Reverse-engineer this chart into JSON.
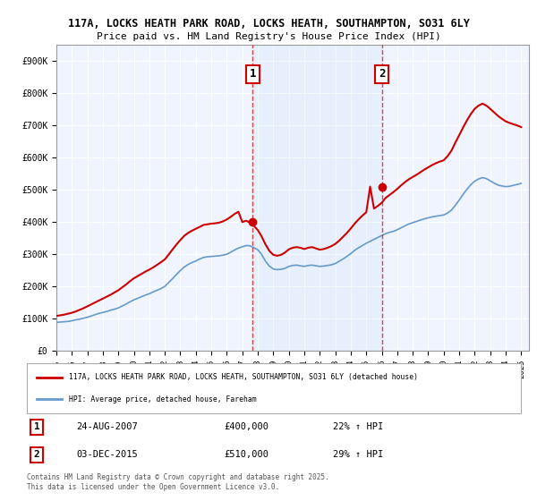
{
  "title1": "117A, LOCKS HEATH PARK ROAD, LOCKS HEATH, SOUTHAMPTON, SO31 6LY",
  "title2": "Price paid vs. HM Land Registry's House Price Index (HPI)",
  "ylabel": "",
  "background_color": "#ffffff",
  "plot_bg_color": "#f0f4ff",
  "grid_color": "#ffffff",
  "red_color": "#cc0000",
  "blue_color": "#6699cc",
  "sale1_date": "2007-08-24",
  "sale1_label": "1",
  "sale1_price": 400000,
  "sale1_pct": "22%",
  "sale2_date": "2015-12-03",
  "sale2_label": "2",
  "sale2_price": 510000,
  "sale2_pct": "29%",
  "legend_line1": "117A, LOCKS HEATH PARK ROAD, LOCKS HEATH, SOUTHAMPTON, SO31 6LY (detached house)",
  "legend_line2": "HPI: Average price, detached house, Fareham",
  "footer": "Contains HM Land Registry data © Crown copyright and database right 2025.\nThis data is licensed under the Open Government Licence v3.0.",
  "ylim": [
    0,
    950000
  ],
  "xlim_start": 1995.0,
  "xlim_end": 2025.5,
  "yticks": [
    0,
    100000,
    200000,
    300000,
    400000,
    500000,
    600000,
    700000,
    800000,
    900000
  ],
  "ytick_labels": [
    "£0",
    "£100K",
    "£200K",
    "£300K",
    "£400K",
    "£500K",
    "£600K",
    "£700K",
    "£800K",
    "£900K"
  ],
  "xticks": [
    1995,
    1996,
    1997,
    1998,
    1999,
    2000,
    2001,
    2002,
    2003,
    2004,
    2005,
    2006,
    2007,
    2008,
    2009,
    2010,
    2011,
    2012,
    2013,
    2014,
    2015,
    2016,
    2017,
    2018,
    2019,
    2020,
    2021,
    2022,
    2023,
    2024,
    2025
  ],
  "hpi_years": [
    1995.0,
    1995.25,
    1995.5,
    1995.75,
    1996.0,
    1996.25,
    1996.5,
    1996.75,
    1997.0,
    1997.25,
    1997.5,
    1997.75,
    1998.0,
    1998.25,
    1998.5,
    1998.75,
    1999.0,
    1999.25,
    1999.5,
    1999.75,
    2000.0,
    2000.25,
    2000.5,
    2000.75,
    2001.0,
    2001.25,
    2001.5,
    2001.75,
    2002.0,
    2002.25,
    2002.5,
    2002.75,
    2003.0,
    2003.25,
    2003.5,
    2003.75,
    2004.0,
    2004.25,
    2004.5,
    2004.75,
    2005.0,
    2005.25,
    2005.5,
    2005.75,
    2006.0,
    2006.25,
    2006.5,
    2006.75,
    2007.0,
    2007.25,
    2007.5,
    2007.75,
    2008.0,
    2008.25,
    2008.5,
    2008.75,
    2009.0,
    2009.25,
    2009.5,
    2009.75,
    2010.0,
    2010.25,
    2010.5,
    2010.75,
    2011.0,
    2011.25,
    2011.5,
    2011.75,
    2012.0,
    2012.25,
    2012.5,
    2012.75,
    2013.0,
    2013.25,
    2013.5,
    2013.75,
    2014.0,
    2014.25,
    2014.5,
    2014.75,
    2015.0,
    2015.25,
    2015.5,
    2015.75,
    2016.0,
    2016.25,
    2016.5,
    2016.75,
    2017.0,
    2017.25,
    2017.5,
    2017.75,
    2018.0,
    2018.25,
    2018.5,
    2018.75,
    2019.0,
    2019.25,
    2019.5,
    2019.75,
    2020.0,
    2020.25,
    2020.5,
    2020.75,
    2021.0,
    2021.25,
    2021.5,
    2021.75,
    2022.0,
    2022.25,
    2022.5,
    2022.75,
    2023.0,
    2023.25,
    2023.5,
    2023.75,
    2024.0,
    2024.25,
    2024.5,
    2024.75,
    2025.0
  ],
  "hpi_values": [
    88000,
    89000,
    90000,
    91000,
    93000,
    96000,
    98000,
    101000,
    104000,
    108000,
    112000,
    116000,
    119000,
    122000,
    126000,
    129000,
    133000,
    139000,
    145000,
    152000,
    158000,
    163000,
    168000,
    173000,
    177000,
    183000,
    188000,
    193000,
    200000,
    212000,
    224000,
    237000,
    249000,
    260000,
    268000,
    274000,
    279000,
    285000,
    290000,
    292000,
    293000,
    294000,
    295000,
    297000,
    300000,
    306000,
    313000,
    319000,
    323000,
    327000,
    326000,
    320000,
    314000,
    299000,
    278000,
    263000,
    254000,
    252000,
    253000,
    256000,
    262000,
    265000,
    266000,
    264000,
    262000,
    265000,
    266000,
    264000,
    262000,
    263000,
    265000,
    267000,
    271000,
    278000,
    285000,
    293000,
    302000,
    312000,
    320000,
    327000,
    334000,
    340000,
    346000,
    352000,
    358000,
    364000,
    368000,
    371000,
    376000,
    382000,
    388000,
    394000,
    398000,
    402000,
    406000,
    410000,
    413000,
    416000,
    418000,
    420000,
    422000,
    428000,
    437000,
    452000,
    468000,
    486000,
    502000,
    516000,
    527000,
    534000,
    538000,
    535000,
    528000,
    521000,
    515000,
    512000,
    510000,
    511000,
    514000,
    517000,
    520000
  ],
  "red_years": [
    1995.0,
    1995.25,
    1995.5,
    1995.75,
    1996.0,
    1996.25,
    1996.5,
    1996.75,
    1997.0,
    1997.25,
    1997.5,
    1997.75,
    1998.0,
    1998.25,
    1998.5,
    1998.75,
    1999.0,
    1999.25,
    1999.5,
    1999.75,
    2000.0,
    2000.25,
    2000.5,
    2000.75,
    2001.0,
    2001.25,
    2001.5,
    2001.75,
    2002.0,
    2002.25,
    2002.5,
    2002.75,
    2003.0,
    2003.25,
    2003.5,
    2003.75,
    2004.0,
    2004.25,
    2004.5,
    2004.75,
    2005.0,
    2005.25,
    2005.5,
    2005.75,
    2006.0,
    2006.25,
    2006.5,
    2006.75,
    2007.0,
    2007.25,
    2007.5,
    2007.75,
    2008.0,
    2008.25,
    2008.5,
    2008.75,
    2009.0,
    2009.25,
    2009.5,
    2009.75,
    2010.0,
    2010.25,
    2010.5,
    2010.75,
    2011.0,
    2011.25,
    2011.5,
    2011.75,
    2012.0,
    2012.25,
    2012.5,
    2012.75,
    2013.0,
    2013.25,
    2013.5,
    2013.75,
    2014.0,
    2014.25,
    2014.5,
    2014.75,
    2015.0,
    2015.25,
    2015.5,
    2015.75,
    2016.0,
    2016.25,
    2016.5,
    2016.75,
    2017.0,
    2017.25,
    2017.5,
    2017.75,
    2018.0,
    2018.25,
    2018.5,
    2018.75,
    2019.0,
    2019.25,
    2019.5,
    2019.75,
    2020.0,
    2020.25,
    2020.5,
    2020.75,
    2021.0,
    2021.25,
    2021.5,
    2021.75,
    2022.0,
    2022.25,
    2022.5,
    2022.75,
    2023.0,
    2023.25,
    2023.5,
    2023.75,
    2024.0,
    2024.25,
    2024.5,
    2024.75,
    2025.0
  ],
  "red_values": [
    108000,
    110000,
    112000,
    115000,
    118000,
    122000,
    127000,
    132000,
    138000,
    144000,
    150000,
    156000,
    162000,
    168000,
    174000,
    181000,
    188000,
    197000,
    206000,
    216000,
    225000,
    232000,
    239000,
    246000,
    252000,
    259000,
    267000,
    275000,
    284000,
    299000,
    315000,
    330000,
    344000,
    357000,
    366000,
    373000,
    379000,
    385000,
    391000,
    393000,
    395000,
    396000,
    398000,
    402000,
    408000,
    416000,
    425000,
    432000,
    400000,
    404000,
    398000,
    388000,
    375000,
    355000,
    330000,
    310000,
    298000,
    295000,
    298000,
    305000,
    315000,
    320000,
    322000,
    320000,
    316000,
    320000,
    322000,
    318000,
    314000,
    316000,
    320000,
    325000,
    332000,
    342000,
    354000,
    366000,
    380000,
    395000,
    408000,
    420000,
    430000,
    510000,
    442000,
    450000,
    460000,
    475000,
    484000,
    493000,
    503000,
    514000,
    524000,
    533000,
    540000,
    547000,
    555000,
    563000,
    570000,
    577000,
    583000,
    588000,
    592000,
    605000,
    622000,
    647000,
    670000,
    694000,
    716000,
    736000,
    752000,
    762000,
    768000,
    762000,
    752000,
    741000,
    730000,
    721000,
    713000,
    708000,
    704000,
    700000,
    695000
  ]
}
